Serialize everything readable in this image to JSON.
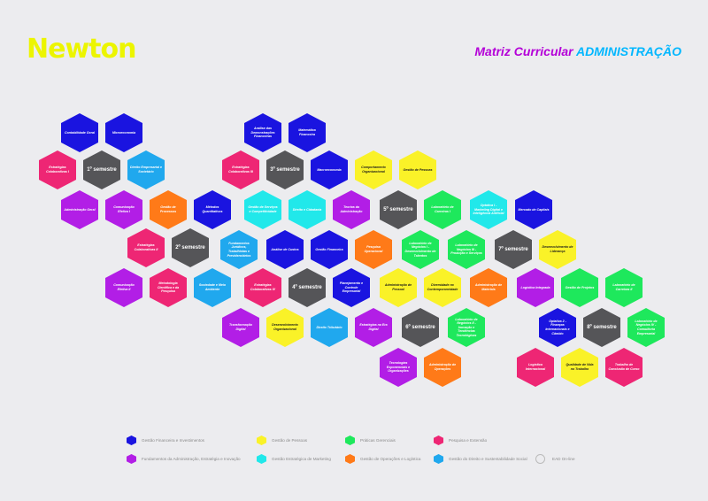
{
  "logo": "Newton",
  "title": {
    "prefix": "Matriz Curricular",
    "course": "ADMINISTRAÇÃO"
  },
  "colors": {
    "finance": "#1a14e0",
    "people": "#faf228",
    "projects": "#1ee85c",
    "research": "#ee2674",
    "fundamentals": "#b21ee6",
    "marketing": "#21e8ea",
    "operations": "#ff7a18",
    "law": "#20a8ee",
    "semester": "#555558"
  },
  "hexes": [
    {
      "label": "Contabilidade Geral",
      "color": "finance"
    },
    {
      "label": "Microeconomia",
      "color": "finance"
    },
    {
      "label": "Estratégias Colaborativas I",
      "color": "research"
    },
    {
      "label": "1º semestre",
      "color": "semester"
    },
    {
      "label": "Direito Empresarial e Societário",
      "color": "law"
    },
    {
      "label": "Administração Geral",
      "color": "fundamentals"
    },
    {
      "label": "Comunicação Efetiva I",
      "color": "fundamentals"
    },
    {
      "label": "Gestão de Processos",
      "color": "operations"
    },
    {
      "label": "Estratégias Colaborativas II",
      "color": "research"
    },
    {
      "label": "2º semestre",
      "color": "semester"
    },
    {
      "label": "Comunicação Efetiva II",
      "color": "fundamentals"
    },
    {
      "label": "Metodologia Científica e da Pesquisa",
      "color": "research"
    },
    {
      "label": "Sociedade e Meio Ambiente",
      "color": "law"
    },
    {
      "label": "Análise das Demonstrações Financeiras",
      "color": "finance"
    },
    {
      "label": "Matemática Financeira",
      "color": "finance"
    },
    {
      "label": "Estratégias Colaborativas III",
      "color": "research"
    },
    {
      "label": "3º semestre",
      "color": "semester"
    },
    {
      "label": "Macroeconomia",
      "color": "finance"
    },
    {
      "label": "Métodos Quantitativos",
      "color": "finance"
    },
    {
      "label": "Gestão de Serviços e Competitividade",
      "color": "marketing"
    },
    {
      "label": "Direito e Cidadania",
      "color": "marketing"
    },
    {
      "label": "Teorias da Administração",
      "color": "fundamentals"
    },
    {
      "label": "Fundamentos Jurídicos, Trabalhistas e Previdenciários",
      "color": "law"
    },
    {
      "label": "Análise de Custos",
      "color": "finance"
    },
    {
      "label": "Gestão Financeira",
      "color": "finance"
    },
    {
      "label": "Estratégias Colaborativas IV",
      "color": "research"
    },
    {
      "label": "4º semestre",
      "color": "semester"
    },
    {
      "label": "Planejamento e Controle Empresarial",
      "color": "finance"
    },
    {
      "label": "Transformação Digital",
      "color": "fundamentals"
    },
    {
      "label": "Desenvolvimento Organizacional",
      "color": "people"
    },
    {
      "label": "Direito Tributário",
      "color": "law"
    },
    {
      "label": "Estratégias na Era Digital",
      "color": "fundamentals"
    },
    {
      "label": "Comportamento Organizacional",
      "color": "people"
    },
    {
      "label": "Gestão de Pessoas",
      "color": "people"
    },
    {
      "label": "5º semestre",
      "color": "semester"
    },
    {
      "label": "Laboratório de Carreiras I",
      "color": "projects"
    },
    {
      "label": "Pesquisa Operacional",
      "color": "operations"
    },
    {
      "label": "Laboratório de Negócios I - Desenvolvimento de Talentos",
      "color": "projects"
    },
    {
      "label": "Laboratório de Negócios III - Produção e Serviços",
      "color": "projects"
    },
    {
      "label": "Administração de Pessoal",
      "color": "people"
    },
    {
      "label": "Diversidade no Contemporaneidade",
      "color": "people"
    },
    {
      "label": "Administração de Materiais",
      "color": "operations"
    },
    {
      "label": "6º semestre",
      "color": "semester"
    },
    {
      "label": "Laboratório de Negócios II - Inovação e Tendências Tecnológicas",
      "color": "projects"
    },
    {
      "label": "Tecnologias Exponenciais e Organizações",
      "color": "fundamentals"
    },
    {
      "label": "Administração de Operações",
      "color": "operations"
    },
    {
      "label": "Optativa I - Marketing Digital e Inteligência Artificial",
      "color": "marketing"
    },
    {
      "label": "Mercado de Capitais",
      "color": "finance"
    },
    {
      "label": "7º semestre",
      "color": "semester"
    },
    {
      "label": "Desenvolvimento de Liderança",
      "color": "people"
    },
    {
      "label": "Logística Integrada",
      "color": "fundamentals"
    },
    {
      "label": "Gestão de Projetos",
      "color": "projects"
    },
    {
      "label": "Laboratório de Carreiras II",
      "color": "projects"
    },
    {
      "label": "Optativa 2 - Finanças Internacionais e Câmbio",
      "color": "finance"
    },
    {
      "label": "8º semestre",
      "color": "semester"
    },
    {
      "label": "Laboratório de Negócios IV - Consultoria Empresarial",
      "color": "projects"
    },
    {
      "label": "Logística Internacional",
      "color": "research"
    },
    {
      "label": "Qualidade de Vida no Trabalho",
      "color": "people"
    },
    {
      "label": "Trabalho de Conclusão de Curso",
      "color": "research"
    }
  ],
  "legend": [
    {
      "label": "Gestão Financeira e Investimentos",
      "color": "finance"
    },
    {
      "label": "Gestão de Pessoas",
      "color": "people"
    },
    {
      "label": "Práticas Gerenciais",
      "color": "projects"
    },
    {
      "label": "Pesquisa e Extensão",
      "color": "research"
    },
    {
      "label": "Fundamentos da Administração, Estratégia e Inovação",
      "color": "fundamentals"
    },
    {
      "label": "Gestão Estratégica de Marketing",
      "color": "marketing"
    },
    {
      "label": "Gestão de Operações e Logística",
      "color": "operations"
    },
    {
      "label": "Gestão do Direito e Sustentabilidade Social",
      "color": "law"
    }
  ],
  "ead": "EAD On-line"
}
